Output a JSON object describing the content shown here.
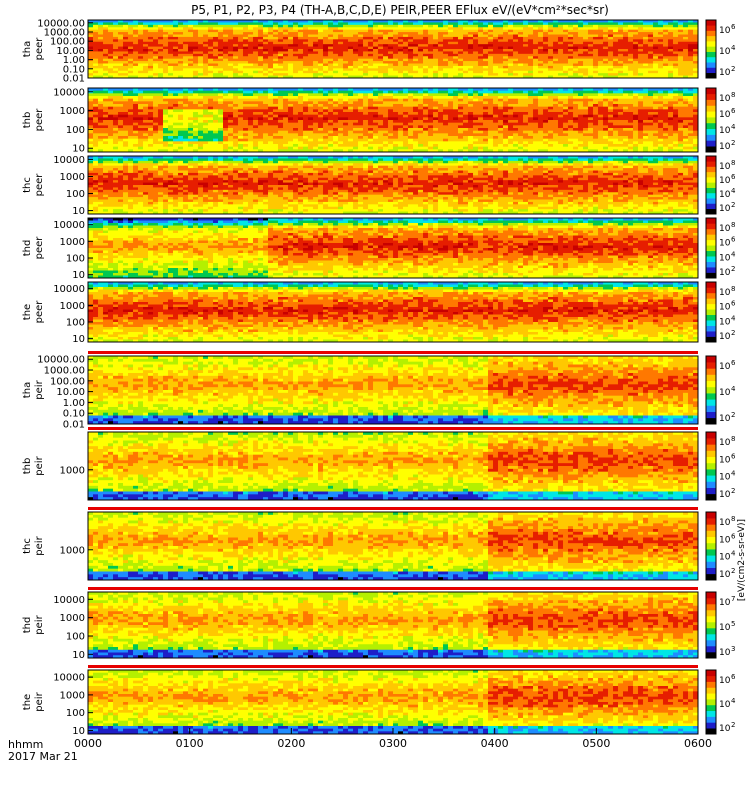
{
  "chart_data": {
    "type": "heatmap",
    "title": "P5, P1, P2, P3, P4 (TH-A,B,C,D,E) PEIR,PEER EFlux eV/(eV*cm²*sec*sr)",
    "x_axis": {
      "ticks": [
        "0000",
        "0100",
        "0200",
        "0300",
        "0400",
        "0500",
        "0600"
      ],
      "range_hhmm": [
        "0000",
        "0600"
      ],
      "label_line1": "hhmm",
      "label_line2": "2017 Mar 21"
    },
    "colorbar_label": "[eV/(cm2-s-sr-eV)]",
    "panels": [
      {
        "id": "tha-peer",
        "probe": "tha",
        "species": "peer",
        "yticks": [
          "10000.00",
          "1000.00",
          "100.00",
          "10.00",
          "1.00",
          "0.10",
          "0.01"
        ],
        "ylim_log10": [
          -2,
          4.3
        ],
        "cbar_ticks": [
          {
            "label": "10",
            "exp": "6"
          },
          {
            "label": "10",
            "exp": "4"
          },
          {
            "label": "10",
            "exp": "2"
          }
        ]
      },
      {
        "id": "thb-peer",
        "probe": "thb",
        "species": "peer",
        "yticks": [
          "10000",
          "1000",
          "100",
          "10"
        ],
        "ylim_log10": [
          0.8,
          4.2
        ],
        "cbar_ticks": [
          {
            "label": "10",
            "exp": "8"
          },
          {
            "label": "10",
            "exp": "6"
          },
          {
            "label": "10",
            "exp": "4"
          },
          {
            "label": "10",
            "exp": "2"
          }
        ]
      },
      {
        "id": "thc-peer",
        "probe": "thc",
        "species": "peer",
        "yticks": [
          "10000",
          "1000",
          "100",
          "10"
        ],
        "ylim_log10": [
          0.8,
          4.2
        ],
        "cbar_ticks": [
          {
            "label": "10",
            "exp": "8"
          },
          {
            "label": "10",
            "exp": "6"
          },
          {
            "label": "10",
            "exp": "4"
          },
          {
            "label": "10",
            "exp": "2"
          }
        ]
      },
      {
        "id": "thd-peer",
        "probe": "thd",
        "species": "peer",
        "yticks": [
          "10000",
          "1000",
          "100",
          "10"
        ],
        "ylim_log10": [
          0.8,
          4.4
        ],
        "cbar_ticks": [
          {
            "label": "10",
            "exp": "8"
          },
          {
            "label": "10",
            "exp": "6"
          },
          {
            "label": "10",
            "exp": "4"
          },
          {
            "label": "10",
            "exp": "2"
          }
        ]
      },
      {
        "id": "the-peer",
        "probe": "the",
        "species": "peer",
        "yticks": [
          "10000",
          "1000",
          "100",
          "10"
        ],
        "ylim_log10": [
          0.8,
          4.4
        ],
        "cbar_ticks": [
          {
            "label": "10",
            "exp": "8"
          },
          {
            "label": "10",
            "exp": "6"
          },
          {
            "label": "10",
            "exp": "4"
          },
          {
            "label": "10",
            "exp": "2"
          }
        ]
      },
      {
        "id": "tha-peir",
        "probe": "tha",
        "species": "peir",
        "yticks": [
          "10000.00",
          "1000.00",
          "100.00",
          "10.00",
          "1.00",
          "0.10",
          "0.01"
        ],
        "ylim_log10": [
          -2,
          4.3
        ],
        "cbar_ticks": [
          {
            "label": "10",
            "exp": "6"
          },
          {
            "label": "10",
            "exp": "4"
          },
          {
            "label": "10",
            "exp": "2"
          }
        ]
      },
      {
        "id": "thb-peir",
        "probe": "thb",
        "species": "peir",
        "yticks": [
          "1000"
        ],
        "ylim_log10": [
          1.8,
          4.5
        ],
        "cbar_ticks": [
          {
            "label": "10",
            "exp": "8"
          },
          {
            "label": "10",
            "exp": "6"
          },
          {
            "label": "10",
            "exp": "4"
          },
          {
            "label": "10",
            "exp": "2"
          }
        ]
      },
      {
        "id": "thc-peir",
        "probe": "thc",
        "species": "peir",
        "yticks": [
          "1000"
        ],
        "ylim_log10": [
          1.8,
          4.5
        ],
        "cbar_ticks": [
          {
            "label": "10",
            "exp": "8"
          },
          {
            "label": "10",
            "exp": "6"
          },
          {
            "label": "10",
            "exp": "4"
          },
          {
            "label": "10",
            "exp": "2"
          }
        ]
      },
      {
        "id": "thd-peir",
        "probe": "thd",
        "species": "peir",
        "yticks": [
          "10000",
          "1000",
          "100",
          "10"
        ],
        "ylim_log10": [
          0.8,
          4.4
        ],
        "cbar_ticks": [
          {
            "label": "10",
            "exp": "7"
          },
          {
            "label": "10",
            "exp": "5"
          },
          {
            "label": "10",
            "exp": "3"
          }
        ]
      },
      {
        "id": "the-peir",
        "probe": "the",
        "species": "peir",
        "yticks": [
          "10000",
          "1000",
          "100",
          "10"
        ],
        "ylim_log10": [
          0.8,
          4.4
        ],
        "cbar_ticks": [
          {
            "label": "10",
            "exp": "6"
          },
          {
            "label": "10",
            "exp": "4"
          },
          {
            "label": "10",
            "exp": "2"
          }
        ]
      }
    ],
    "colormap": [
      "#000000",
      "#1e1ec8",
      "#1e8cff",
      "#00e6e6",
      "#00c850",
      "#b4f000",
      "#ffff00",
      "#ffc800",
      "#ff7800",
      "#e61e00",
      "#c80000"
    ]
  }
}
